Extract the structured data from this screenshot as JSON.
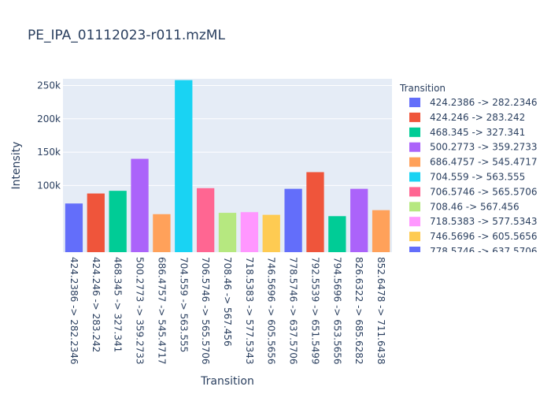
{
  "chart_data": {
    "type": "bar",
    "title": "PE_IPA_01112023-r011.mzML",
    "xlabel": "Transition",
    "ylabel": "Intensity",
    "ylim": [
      0,
      260000
    ],
    "y_ticks": [
      100000,
      150000,
      200000,
      250000
    ],
    "y_tick_labels": [
      "100k",
      "150k",
      "200k",
      "250k"
    ],
    "grid": true,
    "legend": {
      "title": "Transition",
      "position": "right"
    },
    "categories": [
      "424.2386 -> 282.2346",
      "424.246 -> 283.242",
      "468.345 -> 327.341",
      "500.2773 -> 359.2733",
      "686.4757 -> 545.4717",
      "704.559 -> 563.555",
      "706.5746 -> 565.5706",
      "708.46 -> 567.456",
      "718.5383 -> 577.5343",
      "746.5696 -> 605.5656",
      "778.5746 -> 637.5706",
      "792.5539 -> 651.5499",
      "794.5696 -> 653.5656",
      "826.6322 -> 685.6282",
      "852.6478 -> 711.6438"
    ],
    "values": [
      73000,
      88000,
      92000,
      140000,
      57000,
      258000,
      96000,
      59000,
      60000,
      56000,
      95000,
      120000,
      54000,
      95000,
      63000
    ],
    "colors": [
      "#636efa",
      "#EF553B",
      "#00cc96",
      "#ab63fa",
      "#FFA15A",
      "#19d3f3",
      "#FF6692",
      "#B6E880",
      "#FF97FF",
      "#FECB52",
      "#636efa",
      "#EF553B",
      "#00cc96",
      "#ab63fa",
      "#FFA15A"
    ]
  }
}
